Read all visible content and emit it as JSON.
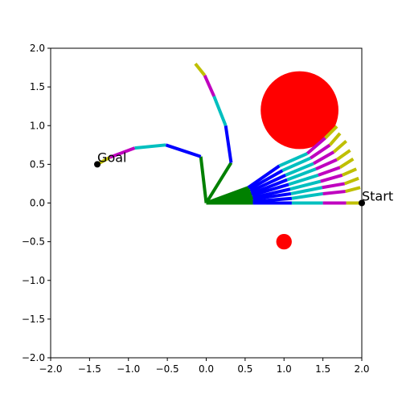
{
  "chart_data": {
    "type": "line",
    "title": "",
    "xlabel": "",
    "ylabel": "",
    "xlim": [
      -2.0,
      2.0
    ],
    "ylim": [
      -2.0,
      2.0
    ],
    "x_ticks": [
      -2.0,
      -1.5,
      -1.0,
      -0.5,
      0.0,
      0.5,
      1.0,
      1.5,
      2.0
    ],
    "y_ticks": [
      -2.0,
      -1.5,
      -1.0,
      -0.5,
      0.0,
      0.5,
      1.0,
      1.5,
      2.0
    ],
    "x_tick_labels": [
      "−2.0",
      "−1.5",
      "−1.0",
      "−0.5",
      "0.0",
      "0.5",
      "1.0",
      "1.5",
      "2.0"
    ],
    "y_tick_labels": [
      "−2.0",
      "−1.5",
      "−1.0",
      "−0.5",
      "0.0",
      "0.5",
      "1.0",
      "1.5",
      "2.0"
    ],
    "grid": false,
    "segment_colors": [
      "#008000",
      "#0000ff",
      "#00bfbf",
      "#bf00bf",
      "#bfbf00"
    ],
    "obstacles": [
      {
        "center": [
          1.2,
          1.2
        ],
        "radius": 0.5,
        "color": "#ff0000"
      },
      {
        "center": [
          1.0,
          -0.5
        ],
        "radius": 0.1,
        "color": "#ff0000"
      }
    ],
    "start": {
      "label": "Start",
      "point": [
        2.0,
        0.0
      ],
      "color": "#000000"
    },
    "goal": {
      "label": "Goal",
      "point": [
        -1.4,
        0.5
      ],
      "color": "#000000"
    },
    "arm_fan": [
      [
        [
          0,
          0
        ],
        [
          0.6,
          0
        ],
        [
          1.1,
          0
        ],
        [
          1.5,
          0
        ],
        [
          1.8,
          0
        ],
        [
          2.0,
          0
        ]
      ],
      [
        [
          0,
          0
        ],
        [
          0.6,
          0.02
        ],
        [
          1.1,
          0.06
        ],
        [
          1.5,
          0.12
        ],
        [
          1.79,
          0.15
        ],
        [
          1.98,
          0.2
        ]
      ],
      [
        [
          0,
          0
        ],
        [
          0.6,
          0.05
        ],
        [
          1.09,
          0.12
        ],
        [
          1.49,
          0.2
        ],
        [
          1.78,
          0.25
        ],
        [
          1.96,
          0.32
        ]
      ],
      [
        [
          0,
          0
        ],
        [
          0.6,
          0.07
        ],
        [
          1.08,
          0.18
        ],
        [
          1.47,
          0.28
        ],
        [
          1.75,
          0.36
        ],
        [
          1.93,
          0.44
        ]
      ],
      [
        [
          0,
          0
        ],
        [
          0.59,
          0.1
        ],
        [
          1.06,
          0.24
        ],
        [
          1.44,
          0.36
        ],
        [
          1.72,
          0.46
        ],
        [
          1.89,
          0.57
        ]
      ],
      [
        [
          0,
          0
        ],
        [
          0.58,
          0.12
        ],
        [
          1.04,
          0.3
        ],
        [
          1.41,
          0.44
        ],
        [
          1.68,
          0.56
        ],
        [
          1.85,
          0.68
        ]
      ],
      [
        [
          0,
          0
        ],
        [
          0.57,
          0.15
        ],
        [
          1.02,
          0.36
        ],
        [
          1.38,
          0.51
        ],
        [
          1.64,
          0.66
        ],
        [
          1.8,
          0.8
        ]
      ],
      [
        [
          0,
          0
        ],
        [
          0.56,
          0.18
        ],
        [
          0.98,
          0.42
        ],
        [
          1.34,
          0.58
        ],
        [
          1.59,
          0.75
        ],
        [
          1.72,
          0.9
        ]
      ],
      [
        [
          0,
          0
        ],
        [
          0.54,
          0.2
        ],
        [
          0.94,
          0.48
        ],
        [
          1.3,
          0.64
        ],
        [
          1.53,
          0.84
        ],
        [
          1.68,
          0.99
        ]
      ]
    ],
    "arm_to_goal": [
      [
        0,
        0
      ],
      [
        -0.07,
        0.6
      ],
      [
        -0.52,
        0.75
      ],
      [
        -0.92,
        0.71
      ],
      [
        -1.24,
        0.59
      ],
      [
        -1.4,
        0.5
      ]
    ],
    "arm_up": [
      [
        0,
        0
      ],
      [
        0.32,
        0.52
      ],
      [
        0.25,
        1.0
      ],
      [
        0.1,
        1.38
      ],
      [
        -0.02,
        1.65
      ],
      [
        -0.14,
        1.8
      ]
    ]
  }
}
